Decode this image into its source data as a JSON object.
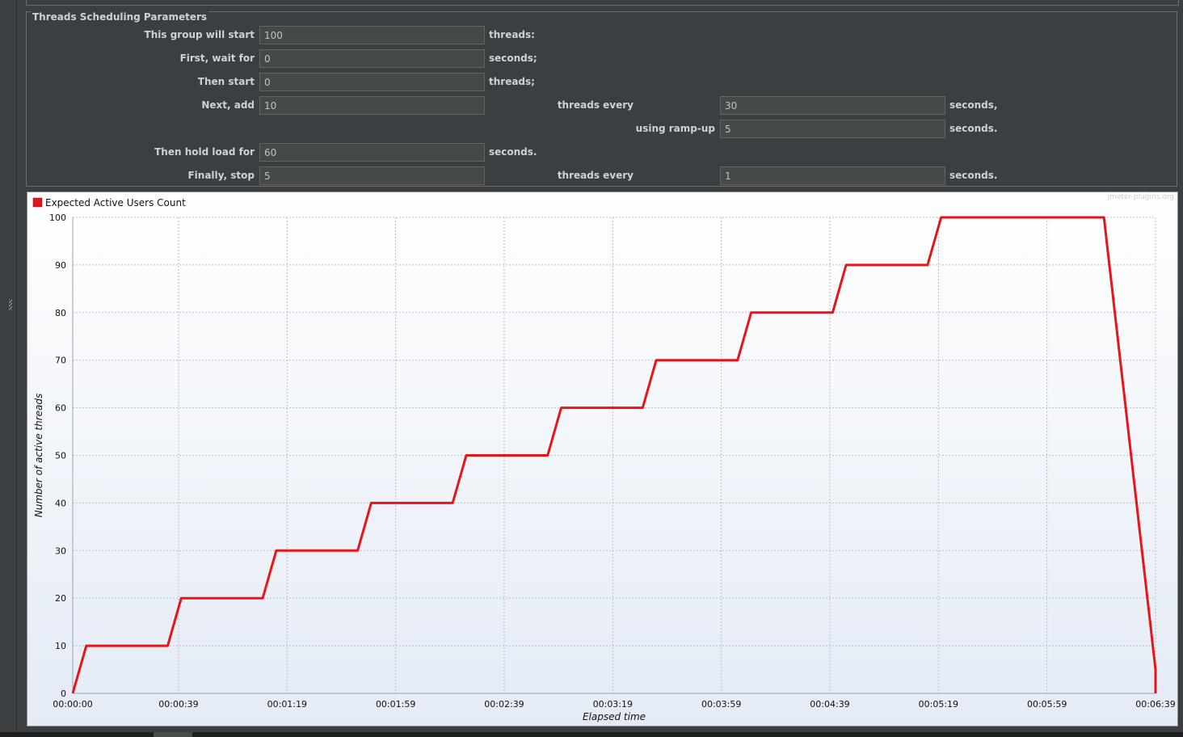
{
  "params": {
    "title": "Threads Scheduling Parameters",
    "rows": [
      {
        "label": "This group will start",
        "value": "100",
        "unit": "threads:"
      },
      {
        "label": "First, wait for",
        "value": "0",
        "unit": "seconds;"
      },
      {
        "label": "Then start",
        "value": "0",
        "unit": "threads;"
      },
      {
        "label": "Next, add",
        "value": "10",
        "mid_label": "threads every",
        "mid_value": "30",
        "unit": "seconds,"
      },
      {
        "label": "",
        "mid_label": "using ramp-up",
        "mid_value": "5",
        "unit": "seconds."
      },
      {
        "label": "Then hold load for",
        "value": "60",
        "unit": "seconds."
      },
      {
        "label": "Finally, stop",
        "value": "5",
        "mid_label": "threads every",
        "mid_value": "1",
        "unit": "seconds."
      }
    ]
  },
  "chart_data": {
    "type": "line",
    "legend": "Expected Active Users Count",
    "watermark": "jmeter-plugins.org",
    "xlabel": "Elapsed time",
    "ylabel": "Number of active threads",
    "ylim": [
      0,
      100
    ],
    "xlim_seconds": [
      0,
      399
    ],
    "yticks": [
      "0",
      "10",
      "20",
      "30",
      "40",
      "50",
      "60",
      "70",
      "80",
      "90",
      "100"
    ],
    "xticks": [
      "00:00:00",
      "00:00:39",
      "00:01:19",
      "00:01:59",
      "00:02:39",
      "00:03:19",
      "00:03:59",
      "00:04:39",
      "00:05:19",
      "00:05:59",
      "00:06:39"
    ],
    "series_color": "#e8141a",
    "series": [
      {
        "name": "Expected Active Users Count",
        "x": [
          "00:00:00",
          "00:00:05",
          "00:00:35",
          "00:00:40",
          "00:01:10",
          "00:01:15",
          "00:01:45",
          "00:01:50",
          "00:02:20",
          "00:02:25",
          "00:02:55",
          "00:03:00",
          "00:03:30",
          "00:03:35",
          "00:04:05",
          "00:04:10",
          "00:04:40",
          "00:04:45",
          "00:05:15",
          "00:05:20",
          "00:06:20",
          "00:06:21",
          "00:06:22",
          "00:06:23",
          "00:06:24",
          "00:06:25",
          "00:06:26",
          "00:06:27",
          "00:06:28",
          "00:06:29",
          "00:06:30",
          "00:06:31",
          "00:06:32",
          "00:06:33",
          "00:06:34",
          "00:06:35",
          "00:06:36",
          "00:06:37",
          "00:06:38",
          "00:06:39",
          "00:06:39"
        ],
        "y": [
          0,
          10,
          10,
          20,
          20,
          30,
          30,
          40,
          40,
          50,
          50,
          60,
          60,
          70,
          70,
          80,
          80,
          90,
          90,
          100,
          100,
          95,
          90,
          85,
          80,
          75,
          70,
          65,
          60,
          55,
          50,
          45,
          40,
          35,
          30,
          25,
          20,
          15,
          10,
          5,
          0
        ]
      }
    ]
  }
}
